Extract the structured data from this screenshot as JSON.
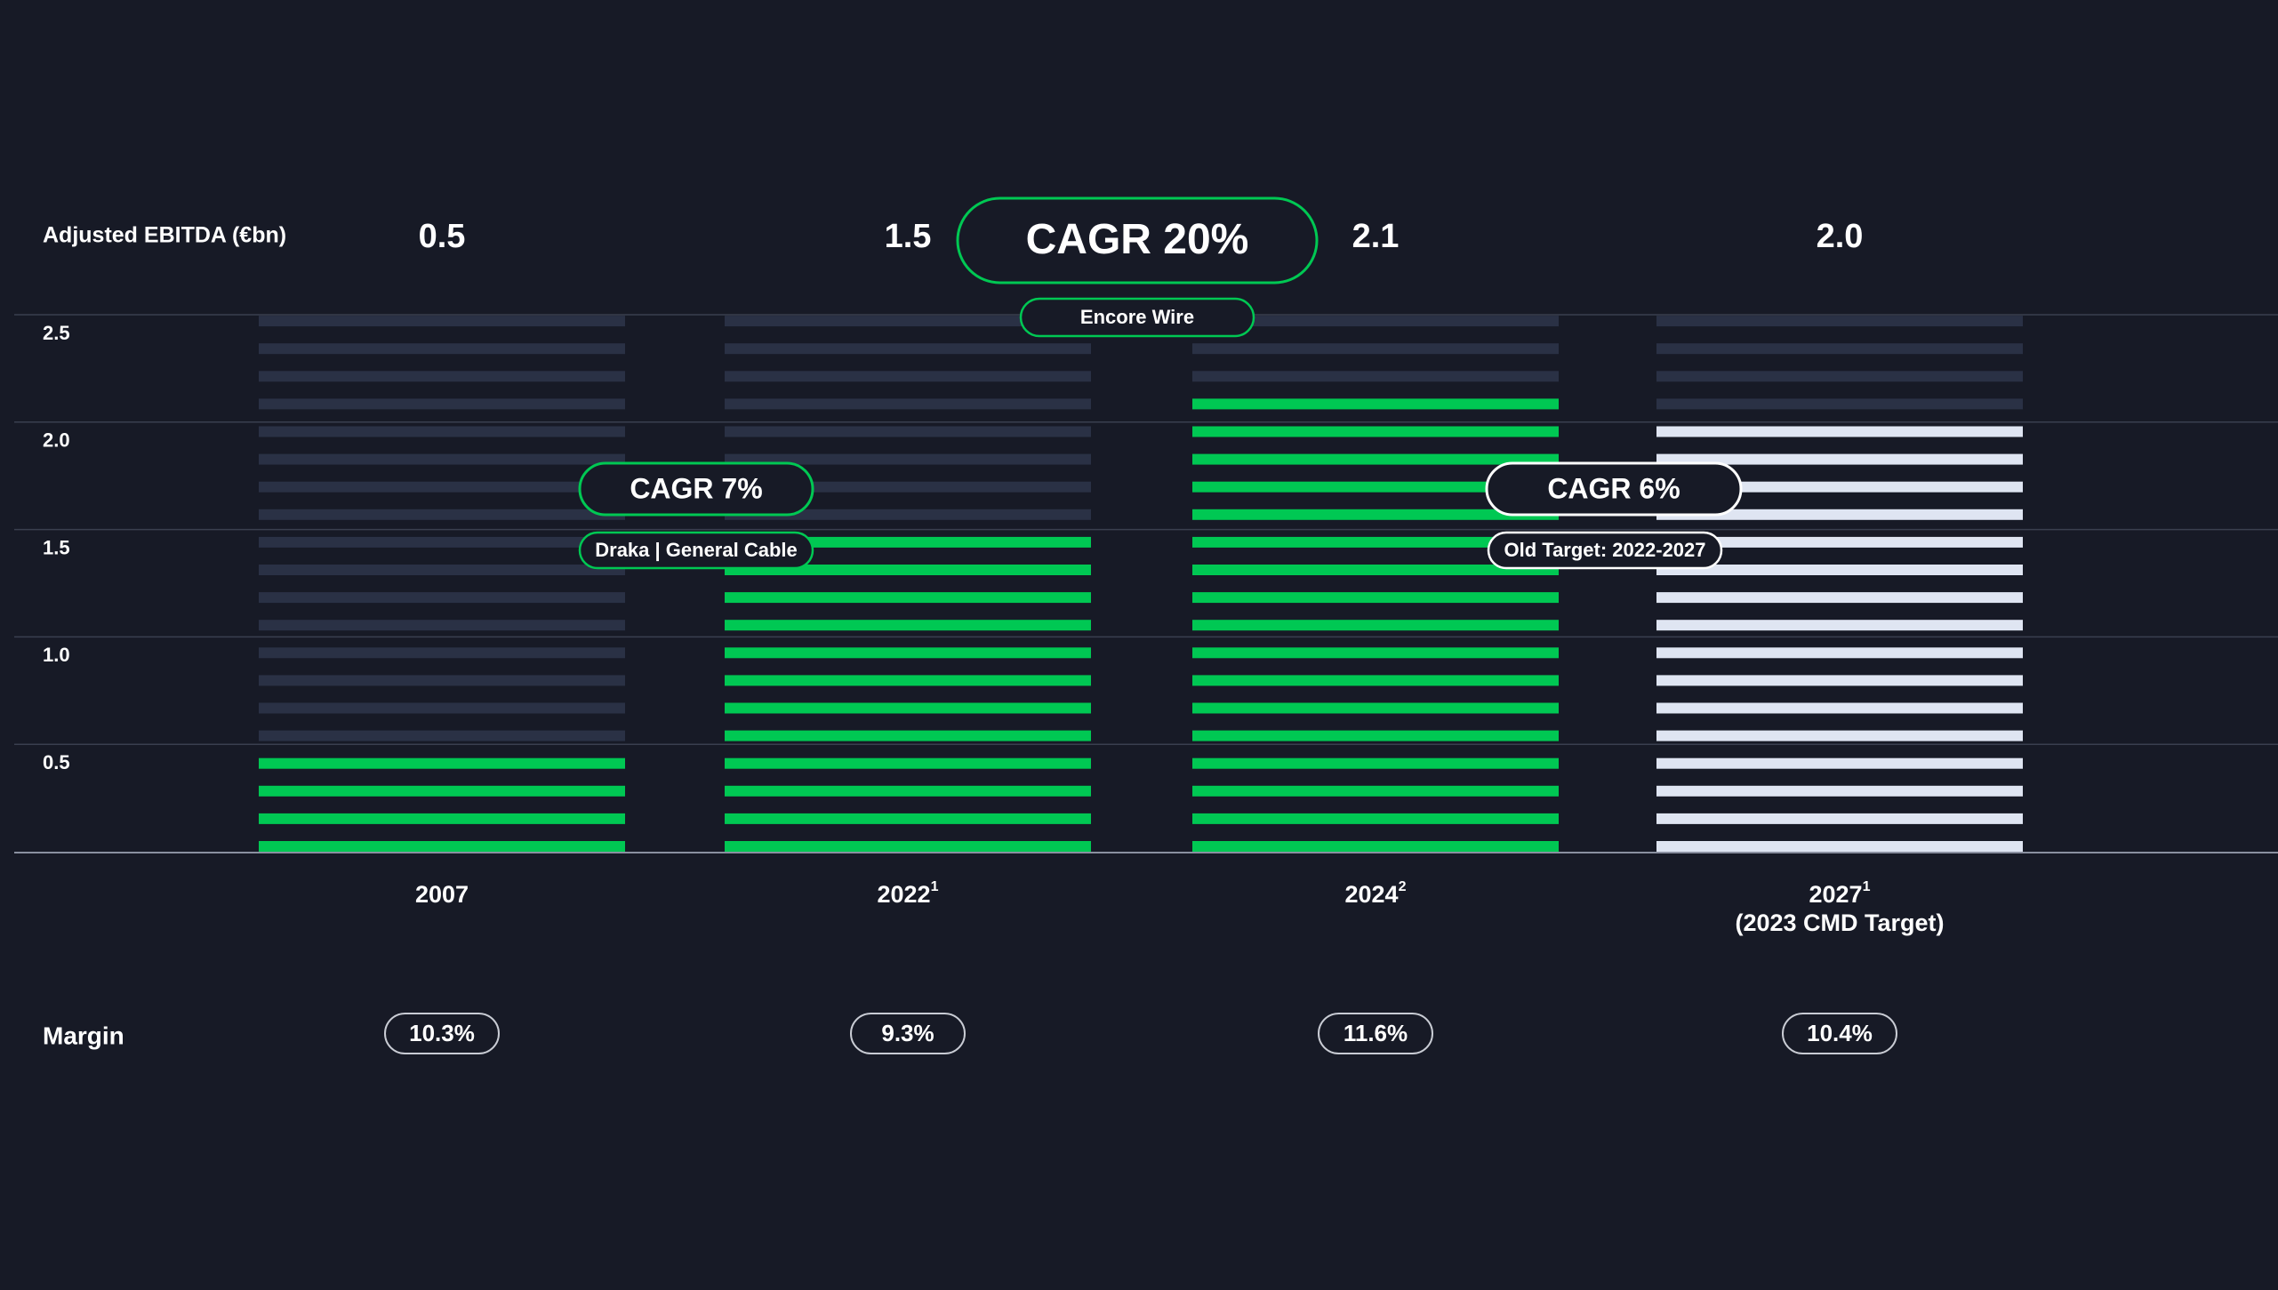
{
  "chart_data": {
    "type": "bar",
    "ylabel": "Adjusted EBITDA (€bn)",
    "ylim": [
      0,
      2.5
    ],
    "yticks": [
      "0.5",
      "1.0",
      "1.5",
      "2.0",
      "2.5"
    ],
    "grid": true,
    "categories": [
      {
        "label": "2007",
        "sup": "",
        "sub": ""
      },
      {
        "label": "2022",
        "sup": "1",
        "sub": ""
      },
      {
        "label": "2024",
        "sup": "2",
        "sub": ""
      },
      {
        "label": "2027",
        "sup": "1",
        "sub": "(2023 CMD Target)"
      }
    ],
    "values": [
      0.5,
      1.5,
      2.1,
      2.0
    ],
    "value_labels": [
      "0.5",
      "1.5",
      "2.1",
      "2.0"
    ],
    "margin_label": "Margin",
    "margins": [
      "10.3%",
      "9.3%",
      "11.6%",
      "10.4%"
    ],
    "annotations": [
      {
        "title": "CAGR 7%",
        "subtitle": "Draka | General Cable",
        "from": "2007",
        "to": "2022",
        "style": "green"
      },
      {
        "title": "CAGR 20%",
        "subtitle": "Encore Wire",
        "from": "2022",
        "to": "2024",
        "style": "green-large"
      },
      {
        "title": "CAGR 6%",
        "subtitle": "Old Target: 2022-2027",
        "from": "2024",
        "to": "2027",
        "style": "white"
      }
    ],
    "colors": {
      "background": "#171a26",
      "filled": "#00c853",
      "target": "#dfe5f2",
      "empty": "#2a3145",
      "grid": "#3a3f4f",
      "axis": "#8a90a0",
      "pill_border_green": "#00c853",
      "pill_border_white": "#ffffff",
      "pill_border_margin": "#c9ccd4"
    }
  }
}
